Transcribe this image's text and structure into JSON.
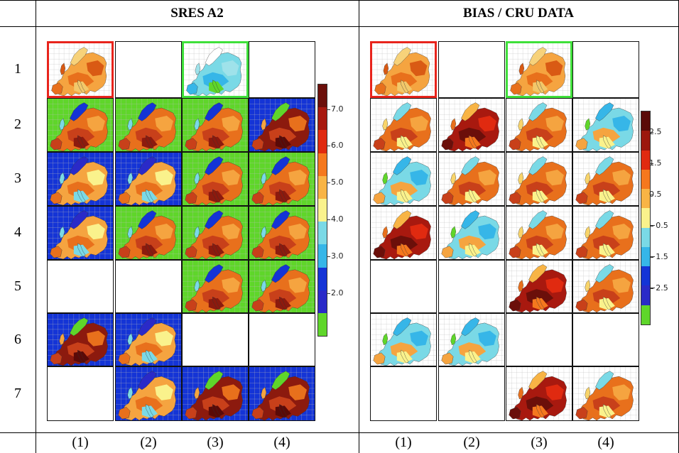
{
  "headers": {
    "left": "SRES A2",
    "right": "BIAS / CRU DATA"
  },
  "row_labels": [
    "1",
    "2",
    "3",
    "4",
    "5",
    "6",
    "7"
  ],
  "col_labels_left": [
    "(1)",
    "(2)",
    "(3)",
    "(4)"
  ],
  "col_labels_right": [
    "(1)",
    "(2)",
    "(3)",
    "(4)"
  ],
  "left_colorbar": {
    "ticks": [
      "7.0",
      "6.0",
      "5.0",
      "4.0",
      "3.0",
      "2.0"
    ],
    "colors": [
      "#6b0f0a",
      "#a8190f",
      "#e02a10",
      "#f5781e",
      "#f8b445",
      "#faf28c",
      "#7ad9e6",
      "#36b6e8",
      "#1434d6",
      "#2a2ac8",
      "#5fd62a"
    ]
  },
  "right_colorbar": {
    "ticks": [
      "2.5",
      "1.5",
      "0.5",
      "−0.5",
      "−1.5",
      "−2.5"
    ],
    "colors": [
      "#5a0a08",
      "#9c170e",
      "#e02a10",
      "#f5781e",
      "#f8b445",
      "#faf28c",
      "#7ad9e6",
      "#36b6e8",
      "#1434d6",
      "#2a2ac8",
      "#5fd62a"
    ]
  },
  "left_panels": [
    {
      "row": 1,
      "col": 1,
      "scheme": "warm",
      "highlight": "red"
    },
    {
      "row": 1,
      "col": 3,
      "scheme": "cool_outline",
      "highlight": "green"
    },
    {
      "row": 2,
      "col": 1,
      "scheme": "sres"
    },
    {
      "row": 2,
      "col": 2,
      "scheme": "sres"
    },
    {
      "row": 2,
      "col": 3,
      "scheme": "sres"
    },
    {
      "row": 2,
      "col": 4,
      "scheme": "sres_hot"
    },
    {
      "row": 3,
      "col": 1,
      "scheme": "sres_cool"
    },
    {
      "row": 3,
      "col": 2,
      "scheme": "sres_cool"
    },
    {
      "row": 3,
      "col": 3,
      "scheme": "sres"
    },
    {
      "row": 3,
      "col": 4,
      "scheme": "sres"
    },
    {
      "row": 4,
      "col": 1,
      "scheme": "sres_cool"
    },
    {
      "row": 4,
      "col": 2,
      "scheme": "sres"
    },
    {
      "row": 4,
      "col": 3,
      "scheme": "sres"
    },
    {
      "row": 4,
      "col": 4,
      "scheme": "sres"
    },
    {
      "row": 5,
      "col": 3,
      "scheme": "sres"
    },
    {
      "row": 5,
      "col": 4,
      "scheme": "sres"
    },
    {
      "row": 6,
      "col": 1,
      "scheme": "sres_hot"
    },
    {
      "row": 6,
      "col": 2,
      "scheme": "sres_cool"
    },
    {
      "row": 7,
      "col": 2,
      "scheme": "sres_cool"
    },
    {
      "row": 7,
      "col": 3,
      "scheme": "sres_hot"
    },
    {
      "row": 7,
      "col": 4,
      "scheme": "sres_hot"
    }
  ],
  "right_panels": [
    {
      "row": 1,
      "col": 1,
      "scheme": "warm",
      "highlight": "red"
    },
    {
      "row": 1,
      "col": 3,
      "scheme": "warm",
      "highlight": "green"
    },
    {
      "row": 2,
      "col": 1,
      "scheme": "bias"
    },
    {
      "row": 2,
      "col": 2,
      "scheme": "bias_hot"
    },
    {
      "row": 2,
      "col": 3,
      "scheme": "bias"
    },
    {
      "row": 2,
      "col": 4,
      "scheme": "bias_cool"
    },
    {
      "row": 3,
      "col": 1,
      "scheme": "bias_cool"
    },
    {
      "row": 3,
      "col": 2,
      "scheme": "bias"
    },
    {
      "row": 3,
      "col": 3,
      "scheme": "bias"
    },
    {
      "row": 3,
      "col": 4,
      "scheme": "bias"
    },
    {
      "row": 4,
      "col": 1,
      "scheme": "bias_hot"
    },
    {
      "row": 4,
      "col": 2,
      "scheme": "bias_cool"
    },
    {
      "row": 4,
      "col": 3,
      "scheme": "bias"
    },
    {
      "row": 4,
      "col": 4,
      "scheme": "bias"
    },
    {
      "row": 5,
      "col": 3,
      "scheme": "bias_hot"
    },
    {
      "row": 5,
      "col": 4,
      "scheme": "bias"
    },
    {
      "row": 6,
      "col": 1,
      "scheme": "bias_cool"
    },
    {
      "row": 6,
      "col": 2,
      "scheme": "bias_cool"
    },
    {
      "row": 7,
      "col": 3,
      "scheme": "bias_hot"
    },
    {
      "row": 7,
      "col": 4,
      "scheme": "bias"
    }
  ],
  "colors": {
    "frame": "#000000",
    "highlight_red": "#e8241c",
    "highlight_green": "#3fe03a"
  }
}
